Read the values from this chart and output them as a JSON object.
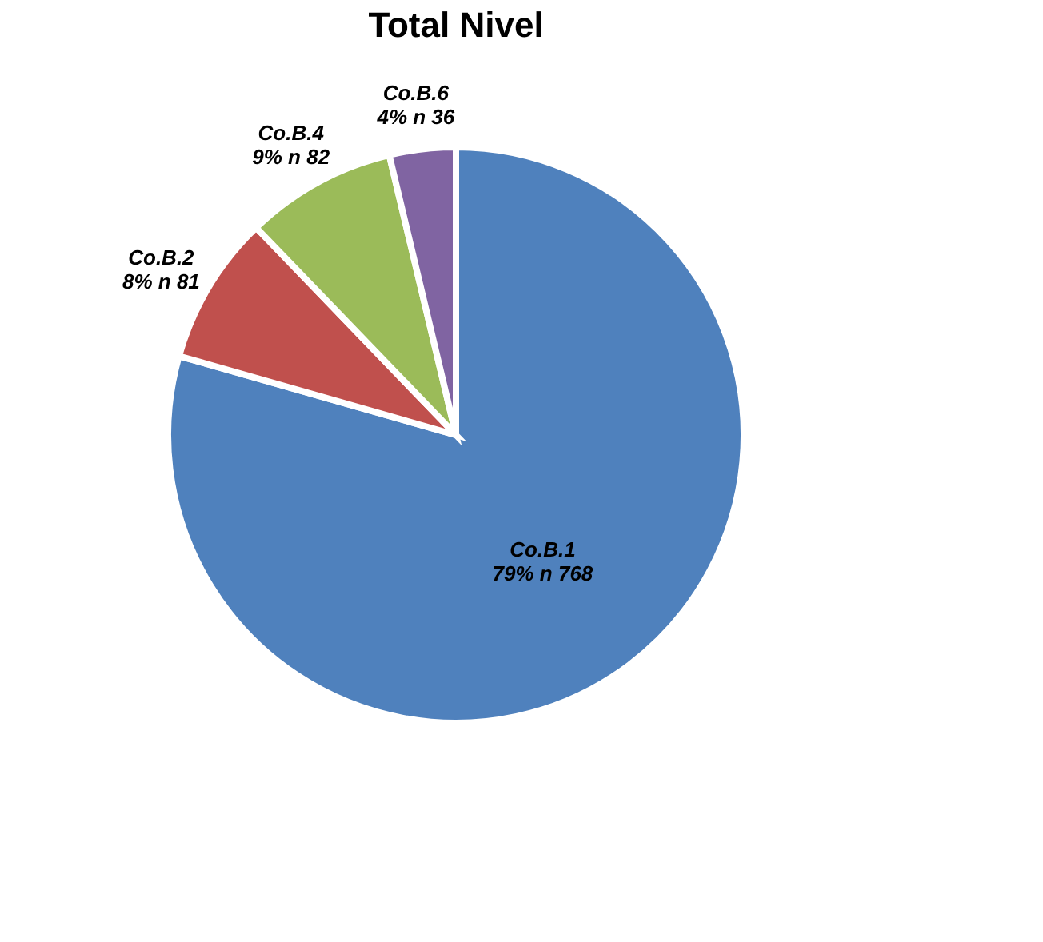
{
  "chart_data": {
    "type": "pie",
    "title": "Total Nivel",
    "categories": [
      "Co.B.1",
      "Co.B.2",
      "Co.B.4",
      "Co.B.6"
    ],
    "values": [
      768,
      81,
      82,
      36
    ],
    "value_labels": [
      "79% n 768",
      "8% n 81",
      "9% n 82",
      "4% n 36"
    ],
    "colors": [
      "#4f81bd",
      "#c0504d",
      "#9bbb59",
      "#8064a2"
    ],
    "legend": false
  }
}
